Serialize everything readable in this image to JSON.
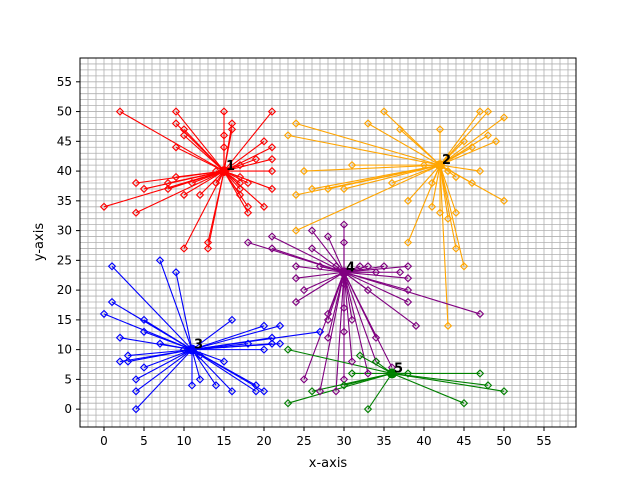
{
  "chart_data": {
    "type": "scatter",
    "title": "",
    "xlabel": "x-axis",
    "ylabel": "y-axis",
    "xlim": [
      -3,
      59
    ],
    "ylim": [
      -3,
      59
    ],
    "grid": true,
    "grid_minor_step": 1,
    "major_tick_step": 5,
    "x_ticks": [
      "0",
      "5",
      "10",
      "15",
      "20",
      "25",
      "30",
      "35",
      "40",
      "45",
      "50",
      "55"
    ],
    "y_ticks": [
      "0",
      "5",
      "10",
      "15",
      "20",
      "25",
      "30",
      "35",
      "40",
      "45",
      "50",
      "55"
    ],
    "clusters": [
      {
        "label": "1",
        "color": "#ff0000",
        "center": [
          15,
          40
        ],
        "points": [
          [
            2,
            50
          ],
          [
            0,
            34
          ],
          [
            4,
            38
          ],
          [
            4,
            33
          ],
          [
            5,
            37
          ],
          [
            8,
            37
          ],
          [
            8,
            38
          ],
          [
            9,
            39
          ],
          [
            9,
            44
          ],
          [
            9,
            48
          ],
          [
            9,
            50
          ],
          [
            10,
            27
          ],
          [
            10,
            36
          ],
          [
            10,
            46
          ],
          [
            10,
            47
          ],
          [
            11,
            38
          ],
          [
            12,
            36
          ],
          [
            13,
            27
          ],
          [
            13,
            28
          ],
          [
            14,
            38
          ],
          [
            14,
            40
          ],
          [
            15,
            44
          ],
          [
            15,
            46
          ],
          [
            15,
            50
          ],
          [
            16,
            47
          ],
          [
            16,
            48
          ],
          [
            17,
            36
          ],
          [
            17,
            37
          ],
          [
            17,
            38
          ],
          [
            17,
            39
          ],
          [
            17,
            41
          ],
          [
            18,
            33
          ],
          [
            18,
            34
          ],
          [
            18,
            38
          ],
          [
            19,
            42
          ],
          [
            20,
            34
          ],
          [
            20,
            45
          ],
          [
            21,
            37
          ],
          [
            21,
            40
          ],
          [
            21,
            42
          ],
          [
            21,
            44
          ],
          [
            21,
            50
          ]
        ]
      },
      {
        "label": "2",
        "color": "#ffa500",
        "center": [
          42,
          41
        ],
        "points": [
          [
            23,
            46
          ],
          [
            24,
            48
          ],
          [
            24,
            36
          ],
          [
            24,
            30
          ],
          [
            25,
            40
          ],
          [
            26,
            37
          ],
          [
            28,
            37
          ],
          [
            30,
            37
          ],
          [
            31,
            41
          ],
          [
            33,
            48
          ],
          [
            35,
            50
          ],
          [
            36,
            38
          ],
          [
            37,
            47
          ],
          [
            38,
            35
          ],
          [
            38,
            28
          ],
          [
            40,
            41
          ],
          [
            41,
            34
          ],
          [
            41,
            38
          ],
          [
            42,
            33
          ],
          [
            42,
            47
          ],
          [
            43,
            14
          ],
          [
            43,
            32
          ],
          [
            43,
            40
          ],
          [
            44,
            27
          ],
          [
            44,
            33
          ],
          [
            44,
            39
          ],
          [
            45,
            24
          ],
          [
            45,
            45
          ],
          [
            46,
            38
          ],
          [
            46,
            44
          ],
          [
            47,
            40
          ],
          [
            47,
            50
          ],
          [
            48,
            50
          ],
          [
            48,
            46
          ],
          [
            49,
            45
          ],
          [
            50,
            35
          ],
          [
            50,
            49
          ]
        ]
      },
      {
        "label": "3",
        "color": "#0000ff",
        "center": [
          11,
          10
        ],
        "points": [
          [
            0,
            16
          ],
          [
            1,
            24
          ],
          [
            1,
            18
          ],
          [
            2,
            12
          ],
          [
            2,
            8
          ],
          [
            3,
            9
          ],
          [
            3,
            8
          ],
          [
            4,
            5
          ],
          [
            4,
            3
          ],
          [
            4,
            0
          ],
          [
            5,
            15
          ],
          [
            5,
            13
          ],
          [
            5,
            7
          ],
          [
            7,
            25
          ],
          [
            7,
            11
          ],
          [
            9,
            23
          ],
          [
            10,
            10
          ],
          [
            11,
            4
          ],
          [
            12,
            9
          ],
          [
            12,
            5
          ],
          [
            14,
            4
          ],
          [
            15,
            8
          ],
          [
            16,
            15
          ],
          [
            16,
            3
          ],
          [
            18,
            11
          ],
          [
            19,
            4
          ],
          [
            19,
            3
          ],
          [
            20,
            14
          ],
          [
            20,
            10
          ],
          [
            20,
            3
          ],
          [
            21,
            12
          ],
          [
            21,
            11
          ],
          [
            22,
            14
          ],
          [
            22,
            11
          ],
          [
            27,
            13
          ]
        ]
      },
      {
        "label": "4",
        "color": "#800080",
        "center": [
          30,
          23
        ],
        "points": [
          [
            18,
            28
          ],
          [
            21,
            29
          ],
          [
            21,
            27
          ],
          [
            24,
            24
          ],
          [
            24,
            22
          ],
          [
            24,
            18
          ],
          [
            25,
            20
          ],
          [
            26,
            30
          ],
          [
            26,
            27
          ],
          [
            27,
            24
          ],
          [
            27,
            3
          ],
          [
            28,
            29
          ],
          [
            28,
            15
          ],
          [
            28,
            16
          ],
          [
            28,
            12
          ],
          [
            29,
            3
          ],
          [
            29,
            24
          ],
          [
            30,
            31
          ],
          [
            30,
            28
          ],
          [
            30,
            21
          ],
          [
            30,
            17
          ],
          [
            30,
            13
          ],
          [
            30,
            5
          ],
          [
            31,
            15
          ],
          [
            31,
            8
          ],
          [
            32,
            24
          ],
          [
            33,
            24
          ],
          [
            33,
            20
          ],
          [
            33,
            6
          ],
          [
            34,
            12
          ],
          [
            34,
            8
          ],
          [
            34,
            23
          ],
          [
            35,
            24
          ],
          [
            36,
            7
          ],
          [
            37,
            23
          ],
          [
            38,
            24
          ],
          [
            38,
            22
          ],
          [
            38,
            20
          ],
          [
            38,
            18
          ],
          [
            39,
            14
          ],
          [
            47,
            16
          ],
          [
            25,
            5
          ]
        ]
      },
      {
        "label": "5",
        "color": "#008000",
        "center": [
          36,
          6
        ],
        "points": [
          [
            23,
            1
          ],
          [
            23,
            10
          ],
          [
            26,
            3
          ],
          [
            30,
            4
          ],
          [
            31,
            6
          ],
          [
            32,
            9
          ],
          [
            33,
            0
          ],
          [
            34,
            8
          ],
          [
            38,
            6
          ],
          [
            45,
            1
          ],
          [
            47,
            6
          ],
          [
            48,
            4
          ],
          [
            50,
            3
          ]
        ]
      }
    ]
  }
}
